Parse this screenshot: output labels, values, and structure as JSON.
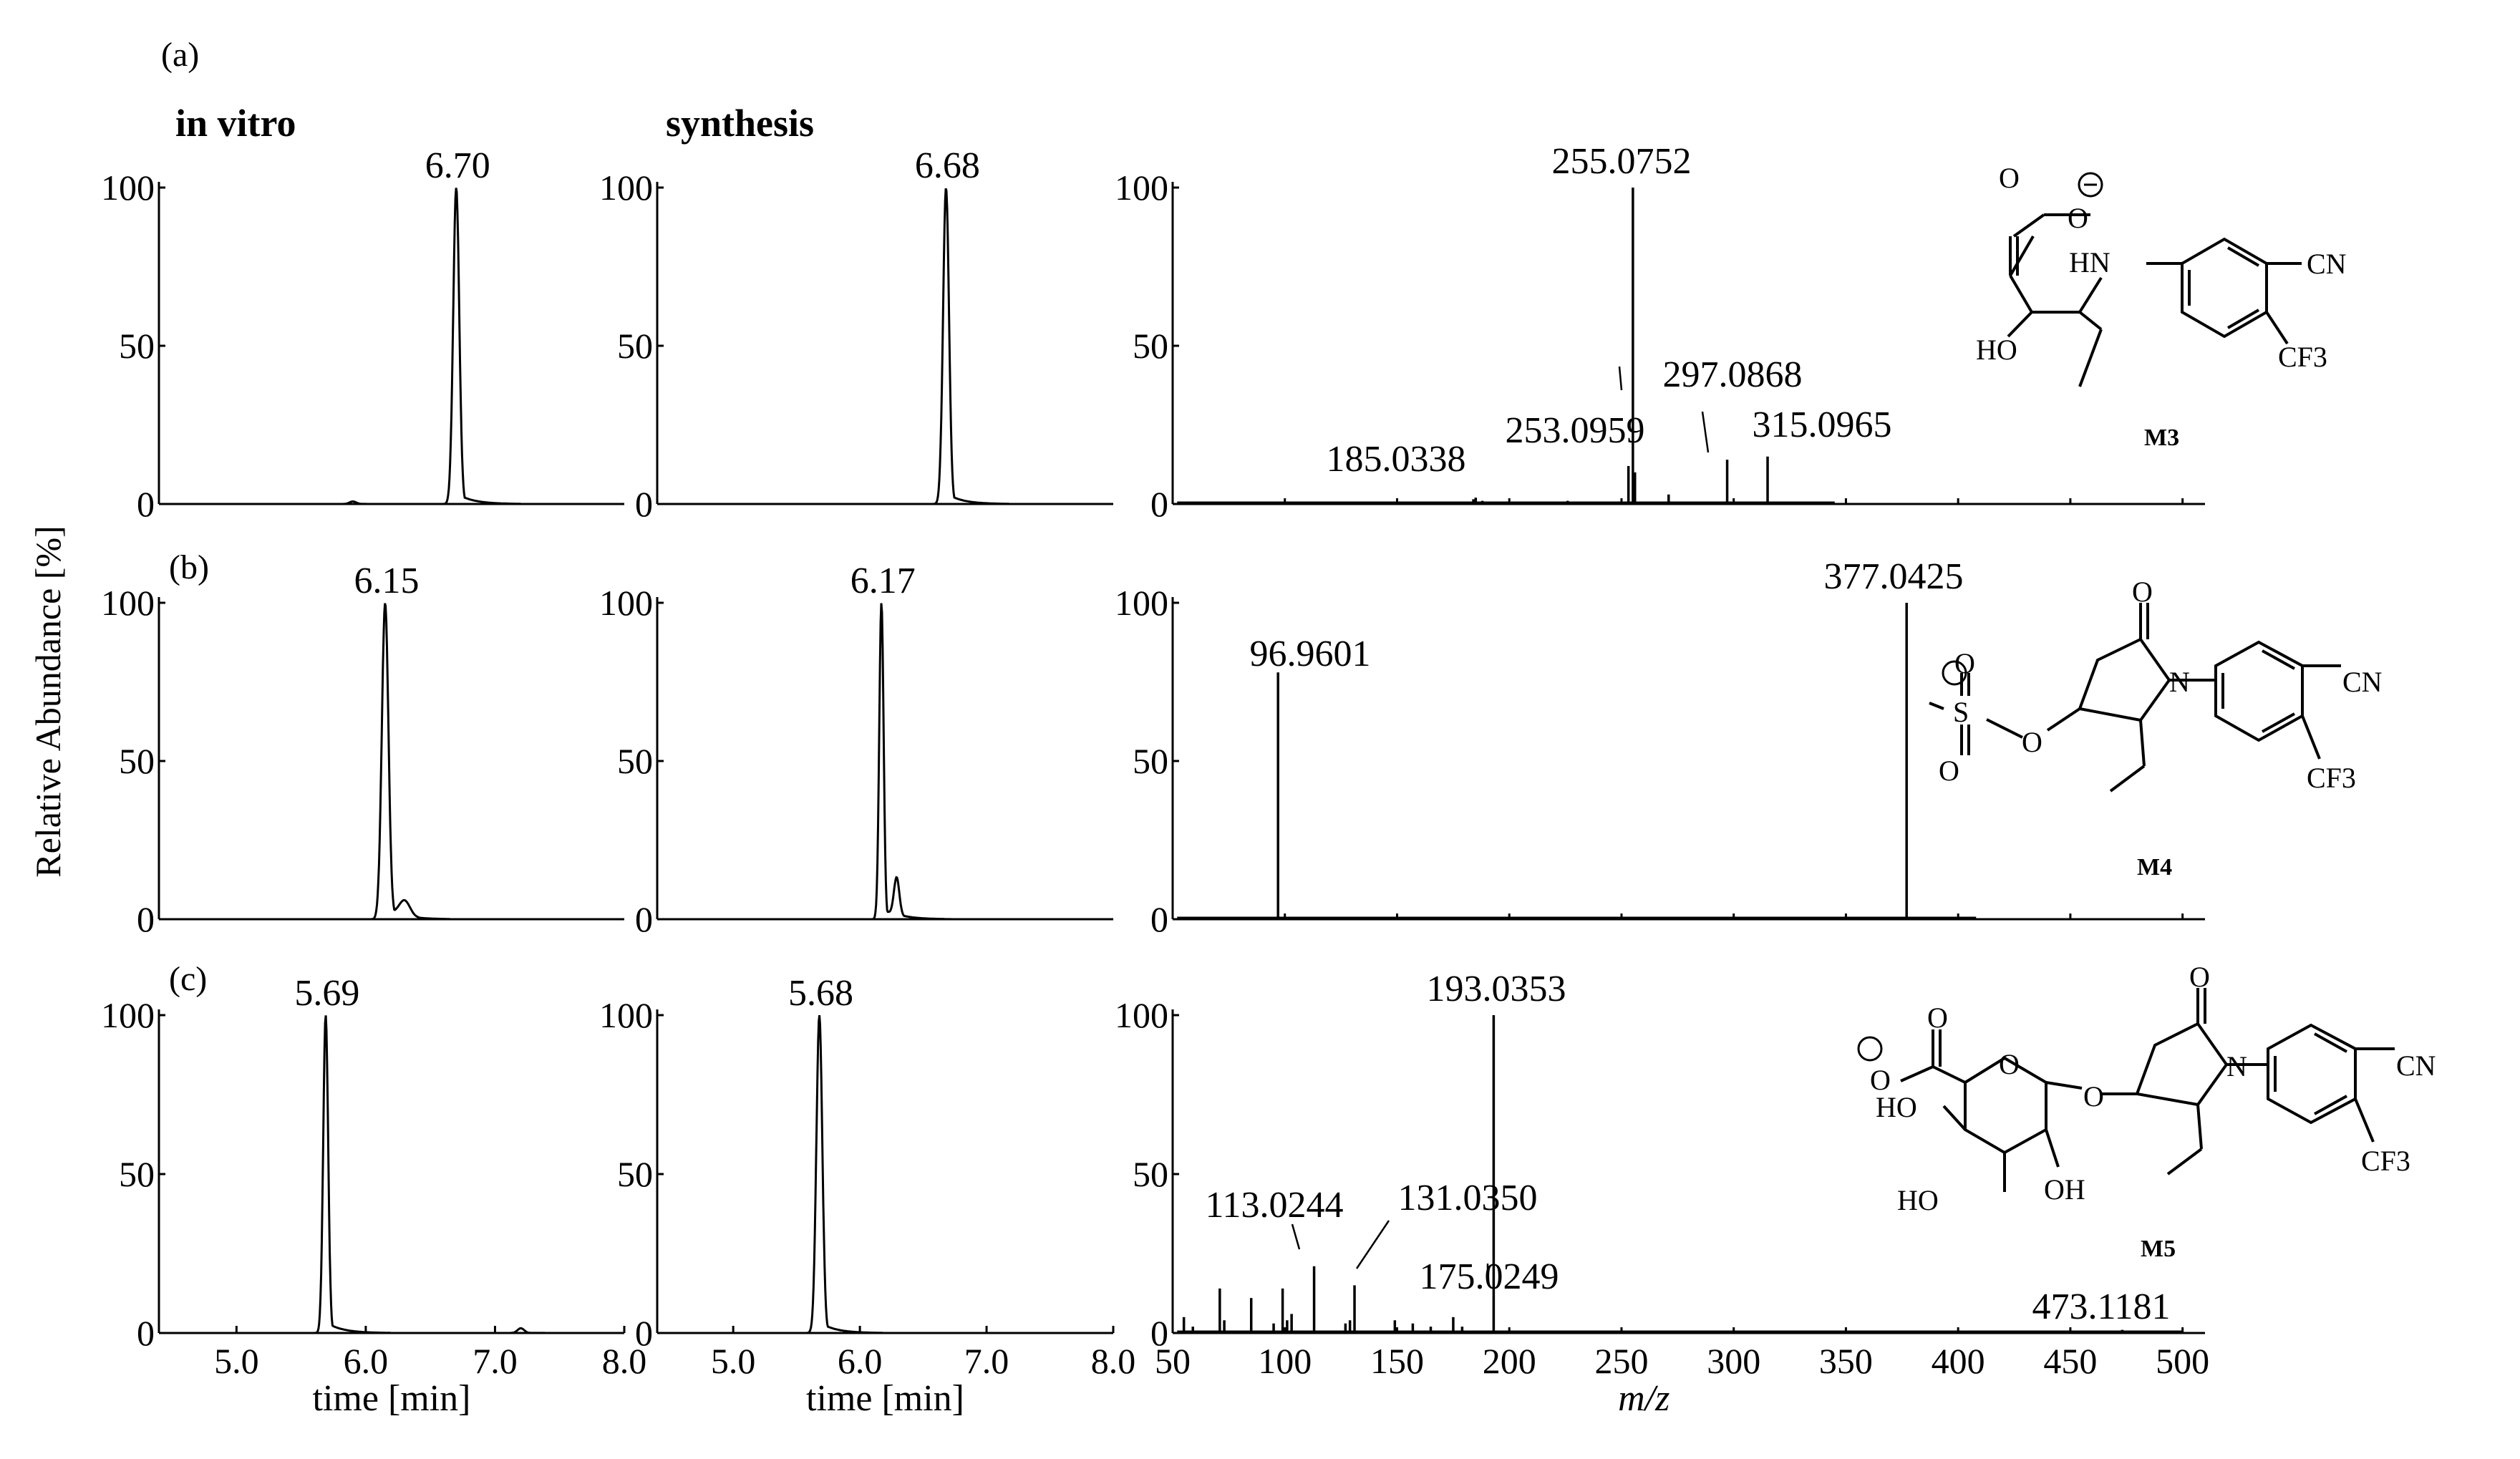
{
  "figure": {
    "y_axis_label": "Relative Abundance [%]",
    "column_headers": [
      "in vitro",
      "synthesis"
    ],
    "panel_letters": [
      "(a)",
      "(b)",
      "(c)"
    ],
    "time_axis_label": "time [min]",
    "mz_axis_label": "m/z",
    "y_ticks": [
      "0",
      "50",
      "100"
    ],
    "time_ticks": [
      "5.0",
      "6.0",
      "7.0",
      "8.0"
    ],
    "mz_ticks": [
      "50",
      "100",
      "150",
      "200",
      "250",
      "300",
      "350",
      "400",
      "450",
      "500"
    ]
  },
  "structures": [
    {
      "id": "M3",
      "labels": [
        "O",
        "O",
        "HN",
        "CN",
        "HO",
        "CF3"
      ]
    },
    {
      "id": "M4",
      "labels": [
        "O",
        "O",
        "S",
        "O",
        "O",
        "N",
        "CN",
        "CF3"
      ]
    },
    {
      "id": "M5",
      "labels": [
        "O",
        "O",
        "O",
        "O",
        "HO",
        "HO",
        "OH",
        "O",
        "N",
        "CN",
        "CF3"
      ]
    }
  ],
  "chart_data": [
    {
      "type": "line",
      "panel": "a",
      "column": "in vitro",
      "xlabel": "",
      "ylabel": "",
      "xlim": [
        4.4,
        8.0
      ],
      "ylim": [
        0,
        100
      ],
      "series": [
        {
          "peaks": [
            {
              "rt": 6.7,
              "label": "6.70",
              "height": 100,
              "width": 0.055
            },
            {
              "rt": 5.9,
              "label": "",
              "height": 0.8,
              "width": 0.06
            }
          ]
        }
      ]
    },
    {
      "type": "line",
      "panel": "a",
      "column": "synthesis",
      "xlabel": "",
      "ylabel": "",
      "xlim": [
        4.4,
        8.0
      ],
      "ylim": [
        0,
        100
      ],
      "series": [
        {
          "peaks": [
            {
              "rt": 6.68,
              "label": "6.68",
              "height": 100,
              "width": 0.055
            }
          ]
        }
      ]
    },
    {
      "type": "bar",
      "panel": "a",
      "xlabel": "",
      "ylabel": "",
      "xlim": [
        50,
        510
      ],
      "ylim": [
        0,
        100
      ],
      "peaks": [
        {
          "mz": 255.0752,
          "label": "255.0752",
          "intensity": 100
        },
        {
          "mz": 253.0959,
          "label": "253.0959",
          "intensity": 12
        },
        {
          "mz": 297.0868,
          "label": "297.0868",
          "intensity": 14
        },
        {
          "mz": 315.0965,
          "label": "315.0965",
          "intensity": 15
        },
        {
          "mz": 185.0338,
          "label": "185.0338",
          "intensity": 2
        },
        {
          "mz": 184.0,
          "label": "",
          "intensity": 1.5
        },
        {
          "mz": 188.0,
          "label": "",
          "intensity": 1
        },
        {
          "mz": 226.0,
          "label": "",
          "intensity": 1
        },
        {
          "mz": 256.0,
          "label": "",
          "intensity": 10
        },
        {
          "mz": 271.0,
          "label": "",
          "intensity": 3
        },
        {
          "mz": 57.0,
          "label": "",
          "intensity": 0.8
        }
      ],
      "baseline_end_mz": 345
    },
    {
      "type": "line",
      "panel": "b",
      "column": "in vitro",
      "xlabel": "",
      "ylabel": "",
      "xlim": [
        4.4,
        8.0
      ],
      "ylim": [
        0,
        100
      ],
      "series": [
        {
          "peaks": [
            {
              "rt": 6.15,
              "label": "6.15",
              "height": 100,
              "width": 0.06
            },
            {
              "rt": 6.3,
              "label": "",
              "height": 5,
              "width": 0.1
            }
          ]
        }
      ]
    },
    {
      "type": "line",
      "panel": "b",
      "column": "synthesis",
      "xlabel": "",
      "ylabel": "",
      "xlim": [
        4.4,
        8.0
      ],
      "ylim": [
        0,
        100
      ],
      "series": [
        {
          "peaks": [
            {
              "rt": 6.17,
              "label": "6.17",
              "height": 100,
              "width": 0.04
            },
            {
              "rt": 6.29,
              "label": "",
              "height": 12,
              "width": 0.05
            }
          ]
        }
      ]
    },
    {
      "type": "bar",
      "panel": "b",
      "xlabel": "",
      "ylabel": "",
      "xlim": [
        50,
        510
      ],
      "ylim": [
        0,
        100
      ],
      "peaks": [
        {
          "mz": 96.9601,
          "label": "96.9601",
          "intensity": 78
        },
        {
          "mz": 377.0425,
          "label": "377.0425",
          "intensity": 100
        }
      ],
      "baseline_end_mz": 408
    },
    {
      "type": "line",
      "panel": "c",
      "column": "in vitro",
      "xlabel": "time [min]",
      "ylabel": "",
      "xlim": [
        4.4,
        8.0
      ],
      "ylim": [
        0,
        100
      ],
      "series": [
        {
          "peaks": [
            {
              "rt": 5.69,
              "label": "5.69",
              "height": 100,
              "width": 0.045
            },
            {
              "rt": 7.2,
              "label": "",
              "height": 1.5,
              "width": 0.06
            }
          ]
        }
      ]
    },
    {
      "type": "line",
      "panel": "c",
      "column": "synthesis",
      "xlabel": "time [min]",
      "ylabel": "",
      "xlim": [
        4.4,
        8.0
      ],
      "ylim": [
        0,
        100
      ],
      "series": [
        {
          "peaks": [
            {
              "rt": 5.68,
              "label": "5.68",
              "height": 100,
              "width": 0.055
            }
          ]
        }
      ]
    },
    {
      "type": "bar",
      "panel": "c",
      "xlabel": "m/z",
      "ylabel": "",
      "xlim": [
        50,
        510
      ],
      "ylim": [
        0,
        100
      ],
      "peaks": [
        {
          "mz": 193.0353,
          "label": "193.0353",
          "intensity": 100
        },
        {
          "mz": 113.0244,
          "label": "113.0244",
          "intensity": 21
        },
        {
          "mz": 131.035,
          "label": "131.0350",
          "intensity": 15
        },
        {
          "mz": 175.0249,
          "label": "175.0249",
          "intensity": 5
        },
        {
          "mz": 473.1181,
          "label": "473.1181",
          "intensity": 1
        },
        {
          "mz": 55.0,
          "label": "",
          "intensity": 5
        },
        {
          "mz": 59.0,
          "label": "",
          "intensity": 2
        },
        {
          "mz": 71.0,
          "label": "",
          "intensity": 14
        },
        {
          "mz": 73.0,
          "label": "",
          "intensity": 4
        },
        {
          "mz": 85.0,
          "label": "",
          "intensity": 11
        },
        {
          "mz": 95.0,
          "label": "",
          "intensity": 3
        },
        {
          "mz": 99.0,
          "label": "",
          "intensity": 14
        },
        {
          "mz": 101.0,
          "label": "",
          "intensity": 4
        },
        {
          "mz": 103.0,
          "label": "",
          "intensity": 6
        },
        {
          "mz": 127.0,
          "label": "",
          "intensity": 3
        },
        {
          "mz": 129.0,
          "label": "",
          "intensity": 4
        },
        {
          "mz": 149.0,
          "label": "",
          "intensity": 4
        },
        {
          "mz": 157.0,
          "label": "",
          "intensity": 3
        },
        {
          "mz": 165.0,
          "label": "",
          "intensity": 2
        },
        {
          "mz": 179.0,
          "label": "",
          "intensity": 2
        }
      ],
      "baseline_end_mz": 500
    }
  ]
}
